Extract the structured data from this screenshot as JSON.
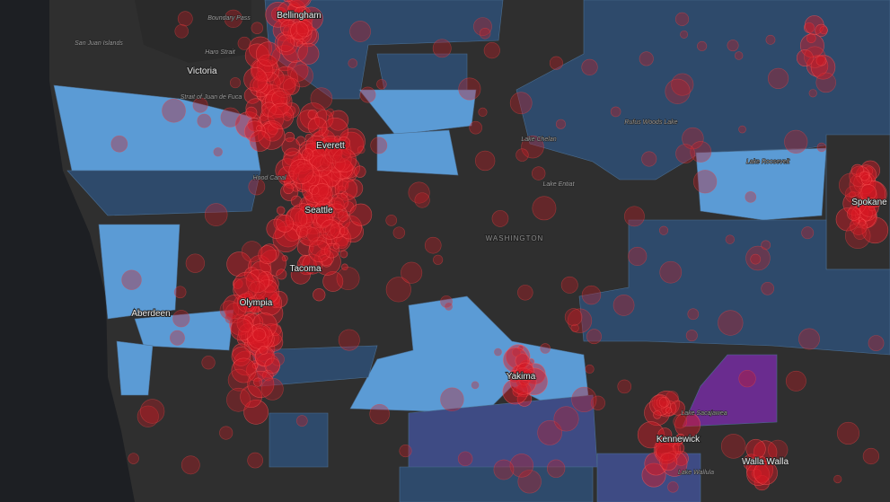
{
  "map": {
    "labels": [
      {
        "text": "Bellingham"
      },
      {
        "text": "Victoria"
      },
      {
        "text": "Everett"
      },
      {
        "text": "Seattle"
      },
      {
        "text": "Tacoma"
      },
      {
        "text": "Olympia"
      },
      {
        "text": "Aberdeen"
      },
      {
        "text": "Yakima"
      },
      {
        "text": "Kennewick"
      },
      {
        "text": "Walla Walla"
      },
      {
        "text": "Spokane"
      },
      {
        "text": "WASHINGTON"
      },
      {
        "text": "Boundary Pass"
      },
      {
        "text": "Haro Strait"
      },
      {
        "text": "Strait of Juan de Fuca"
      },
      {
        "text": "San Juan Islands"
      },
      {
        "text": "Hood Canal"
      },
      {
        "text": "Lake Chelan"
      },
      {
        "text": "Lake Entiat"
      },
      {
        "text": "Rufus Woods Lake"
      },
      {
        "text": "Lake Wallula"
      },
      {
        "text": "Lake Sacajawea"
      },
      {
        "text": "Lake Roosevelt"
      }
    ]
  }
}
